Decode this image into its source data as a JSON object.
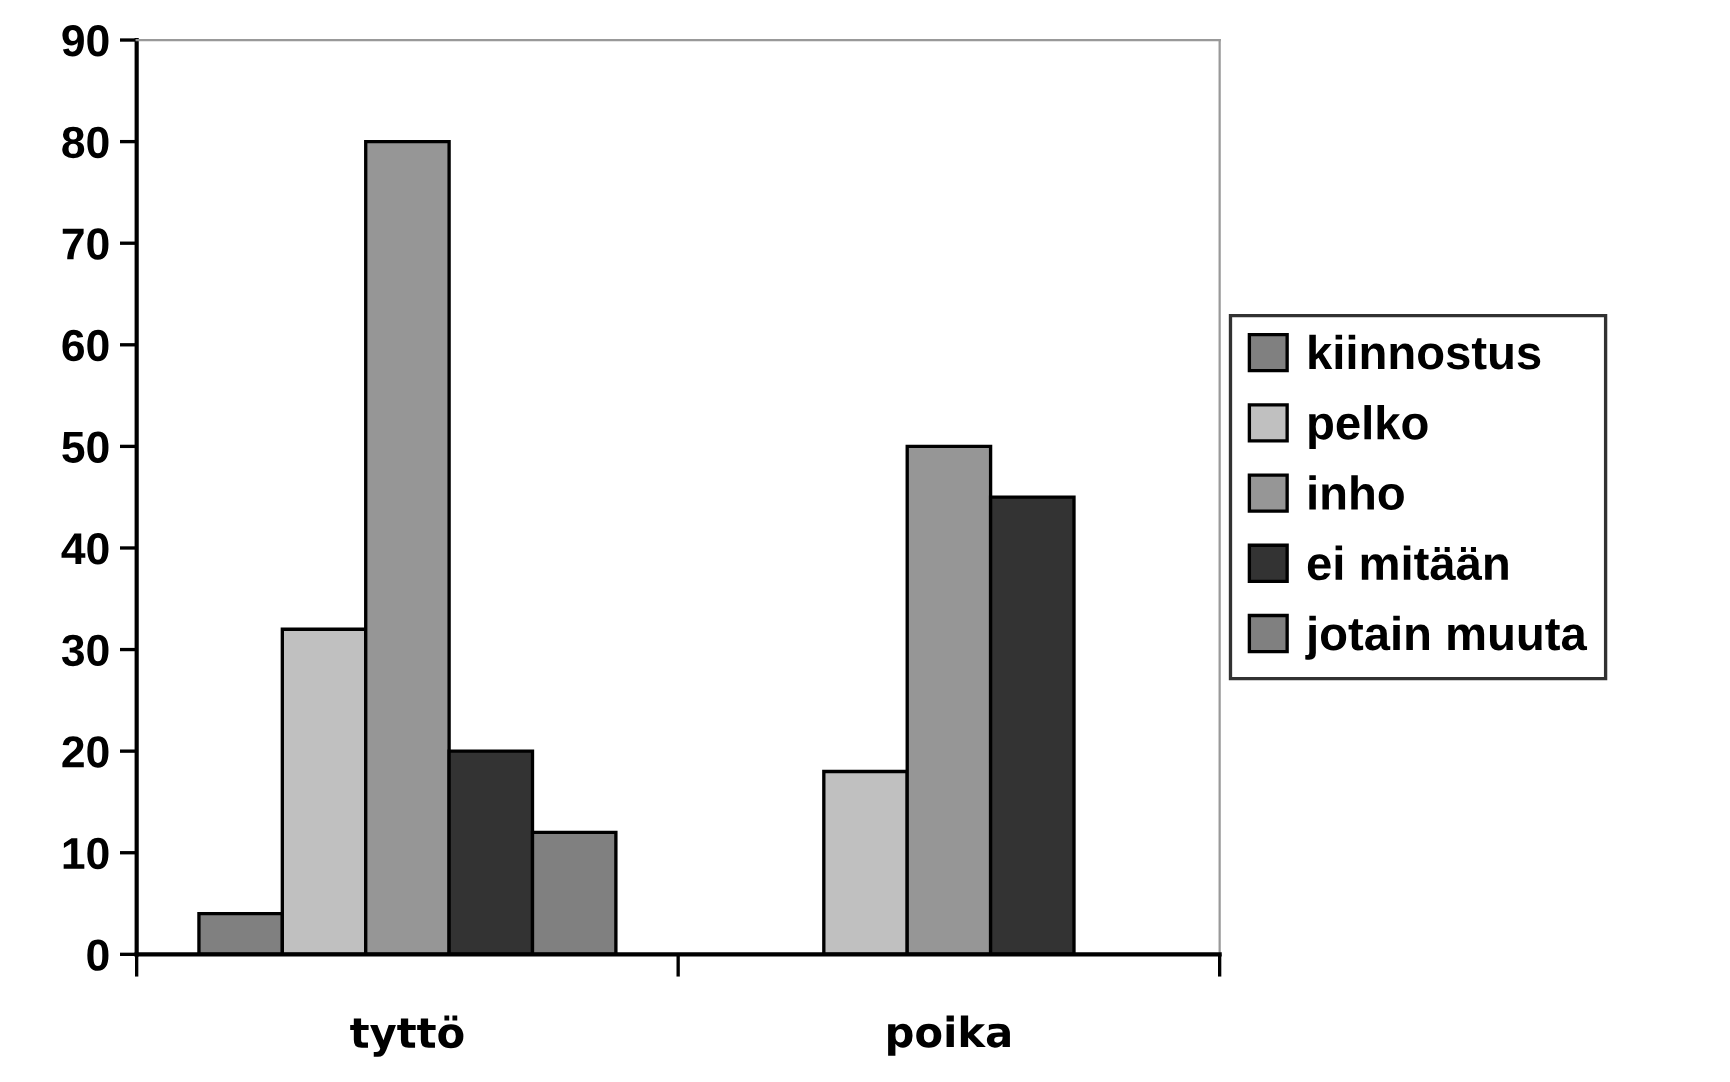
{
  "chart_data": {
    "type": "bar",
    "categories": [
      "tyttö",
      "poika"
    ],
    "series": [
      {
        "name": "kiinnostus",
        "color": "#808080",
        "values": [
          4,
          0
        ]
      },
      {
        "name": "pelko",
        "color": "#c0c0c0",
        "values": [
          32,
          18
        ]
      },
      {
        "name": "inho",
        "color": "#969696",
        "values": [
          80,
          50
        ]
      },
      {
        "name": "ei mitään",
        "color": "#333333",
        "values": [
          20,
          45
        ]
      },
      {
        "name": "jotain muuta",
        "color": "#808080",
        "values": [
          12,
          0
        ]
      }
    ],
    "ylim": [
      0,
      90
    ],
    "yticks": [
      0,
      10,
      20,
      30,
      40,
      50,
      60,
      70,
      80,
      90
    ],
    "grid": false,
    "legend": "right"
  }
}
